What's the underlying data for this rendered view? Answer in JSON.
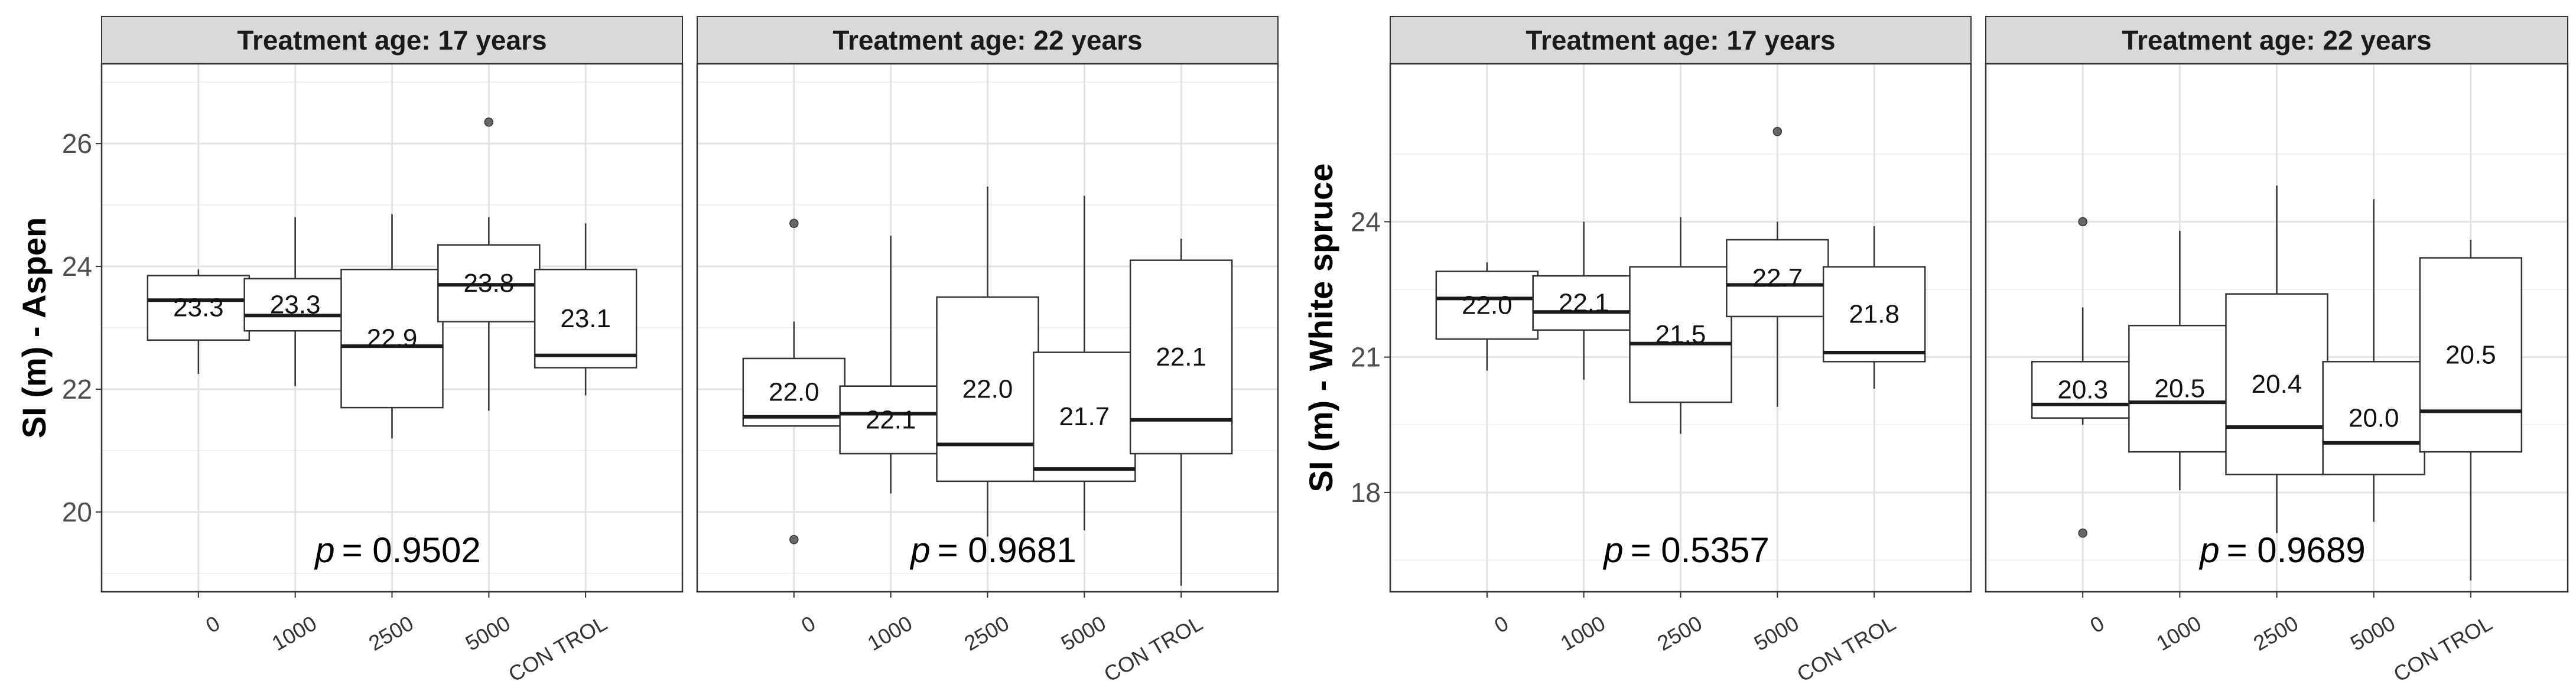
{
  "chart_data": [
    {
      "type": "boxplot",
      "ylabel": "SI (m) - Aspen",
      "ylim": [
        18.7,
        27.3
      ],
      "yticks": [
        20,
        22,
        24,
        26
      ],
      "categories": [
        "0",
        "1000",
        "2500",
        "5000",
        "CON TROL"
      ],
      "panels": [
        {
          "strip": "Treatment age: 17 years",
          "p_label": "p",
          "p_text": "= 0.9502",
          "boxes": [
            {
              "lower_whisker": 22.25,
              "q1": 22.8,
              "median": 23.45,
              "q3": 23.85,
              "upper_whisker": 23.95,
              "outliers": [],
              "mean_label": "23.3"
            },
            {
              "lower_whisker": 22.05,
              "q1": 22.95,
              "median": 23.2,
              "q3": 23.8,
              "upper_whisker": 24.8,
              "outliers": [],
              "mean_label": "23.3"
            },
            {
              "lower_whisker": 21.2,
              "q1": 21.7,
              "median": 22.7,
              "q3": 23.95,
              "upper_whisker": 24.85,
              "outliers": [],
              "mean_label": "22.9"
            },
            {
              "lower_whisker": 21.65,
              "q1": 23.1,
              "median": 23.7,
              "q3": 24.35,
              "upper_whisker": 24.8,
              "outliers": [
                26.35
              ],
              "mean_label": "23.8"
            },
            {
              "lower_whisker": 21.9,
              "q1": 22.35,
              "median": 22.55,
              "q3": 23.95,
              "upper_whisker": 24.7,
              "outliers": [],
              "mean_label": "23.1"
            }
          ]
        },
        {
          "strip": "Treatment age: 22 years",
          "p_label": "p",
          "p_text": "= 0.9681",
          "boxes": [
            {
              "lower_whisker": 21.4,
              "q1": 21.4,
              "median": 21.55,
              "q3": 22.5,
              "upper_whisker": 23.1,
              "outliers": [
                24.7,
                19.55
              ],
              "mean_label": "22.0"
            },
            {
              "lower_whisker": 20.3,
              "q1": 20.95,
              "median": 21.6,
              "q3": 22.05,
              "upper_whisker": 24.5,
              "outliers": [],
              "mean_label": "22.1"
            },
            {
              "lower_whisker": 19.6,
              "q1": 20.5,
              "median": 21.1,
              "q3": 23.5,
              "upper_whisker": 25.3,
              "outliers": [],
              "mean_label": "22.0"
            },
            {
              "lower_whisker": 19.7,
              "q1": 20.5,
              "median": 20.7,
              "q3": 22.6,
              "upper_whisker": 25.15,
              "outliers": [],
              "mean_label": "21.7"
            },
            {
              "lower_whisker": 18.8,
              "q1": 20.95,
              "median": 21.5,
              "q3": 24.1,
              "upper_whisker": 24.45,
              "outliers": [],
              "mean_label": "22.1"
            }
          ]
        }
      ]
    },
    {
      "type": "boxplot",
      "ylabel": "SI (m) - White spruce",
      "ylim": [
        15.8,
        27.5
      ],
      "yticks": [
        18,
        21,
        24
      ],
      "categories": [
        "0",
        "1000",
        "2500",
        "5000",
        "CON TROL"
      ],
      "panels": [
        {
          "strip": "Treatment age: 17 years",
          "p_label": "p",
          "p_text": "= 0.5357",
          "boxes": [
            {
              "lower_whisker": 20.7,
              "q1": 21.4,
              "median": 22.3,
              "q3": 22.9,
              "upper_whisker": 23.1,
              "outliers": [],
              "mean_label": "22.0"
            },
            {
              "lower_whisker": 20.5,
              "q1": 21.6,
              "median": 22.0,
              "q3": 22.8,
              "upper_whisker": 24.0,
              "outliers": [],
              "mean_label": "22.1"
            },
            {
              "lower_whisker": 19.3,
              "q1": 20.0,
              "median": 21.3,
              "q3": 23.0,
              "upper_whisker": 24.1,
              "outliers": [],
              "mean_label": "21.5"
            },
            {
              "lower_whisker": 19.9,
              "q1": 21.9,
              "median": 22.6,
              "q3": 23.6,
              "upper_whisker": 24.0,
              "outliers": [
                26.0
              ],
              "mean_label": "22.7"
            },
            {
              "lower_whisker": 20.3,
              "q1": 20.9,
              "median": 21.1,
              "q3": 23.0,
              "upper_whisker": 23.9,
              "outliers": [],
              "mean_label": "21.8"
            }
          ]
        },
        {
          "strip": "Treatment age: 22 years",
          "p_label": "p",
          "p_text": "= 0.9689",
          "boxes": [
            {
              "lower_whisker": 19.5,
              "q1": 19.65,
              "median": 19.95,
              "q3": 20.9,
              "upper_whisker": 22.1,
              "outliers": [
                24.0,
                17.1
              ],
              "mean_label": "20.3"
            },
            {
              "lower_whisker": 18.05,
              "q1": 18.9,
              "median": 20.0,
              "q3": 21.7,
              "upper_whisker": 23.8,
              "outliers": [],
              "mean_label": "20.5"
            },
            {
              "lower_whisker": 17.1,
              "q1": 18.4,
              "median": 19.45,
              "q3": 22.4,
              "upper_whisker": 24.8,
              "outliers": [],
              "mean_label": "20.4"
            },
            {
              "lower_whisker": 17.35,
              "q1": 18.4,
              "median": 19.1,
              "q3": 20.9,
              "upper_whisker": 24.5,
              "outliers": [],
              "mean_label": "20.0"
            },
            {
              "lower_whisker": 16.05,
              "q1": 18.9,
              "median": 19.8,
              "q3": 23.2,
              "upper_whisker": 23.6,
              "outliers": [],
              "mean_label": "20.5"
            }
          ]
        }
      ]
    }
  ]
}
